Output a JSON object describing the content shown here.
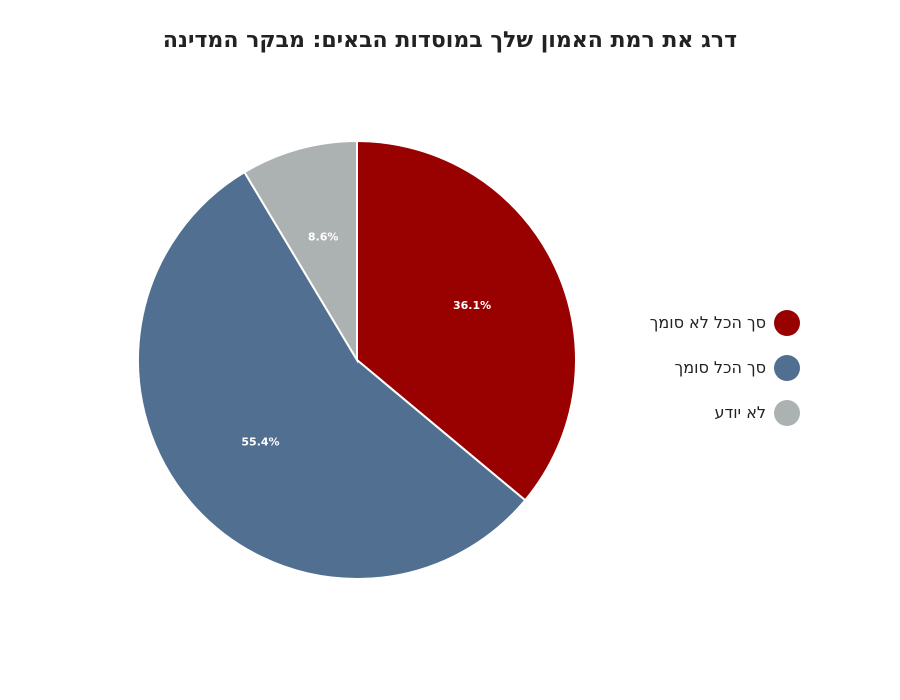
{
  "chart_data": {
    "type": "pie",
    "title": "דרג את רמת האמון שלך במוסדות הבאים: מבקר המדינה",
    "legend_position": "right",
    "slices": [
      {
        "label": "סך הכל לא סומך",
        "value": 36.1,
        "value_label": "36.1%",
        "color": "#990000"
      },
      {
        "label": "סך הכל סומך",
        "value": 55.4,
        "value_label": "55.4%",
        "color": "#516f91"
      },
      {
        "label": "לא יודע",
        "value": 8.6,
        "value_label": "8.6%",
        "color": "#acb1b1"
      }
    ]
  }
}
